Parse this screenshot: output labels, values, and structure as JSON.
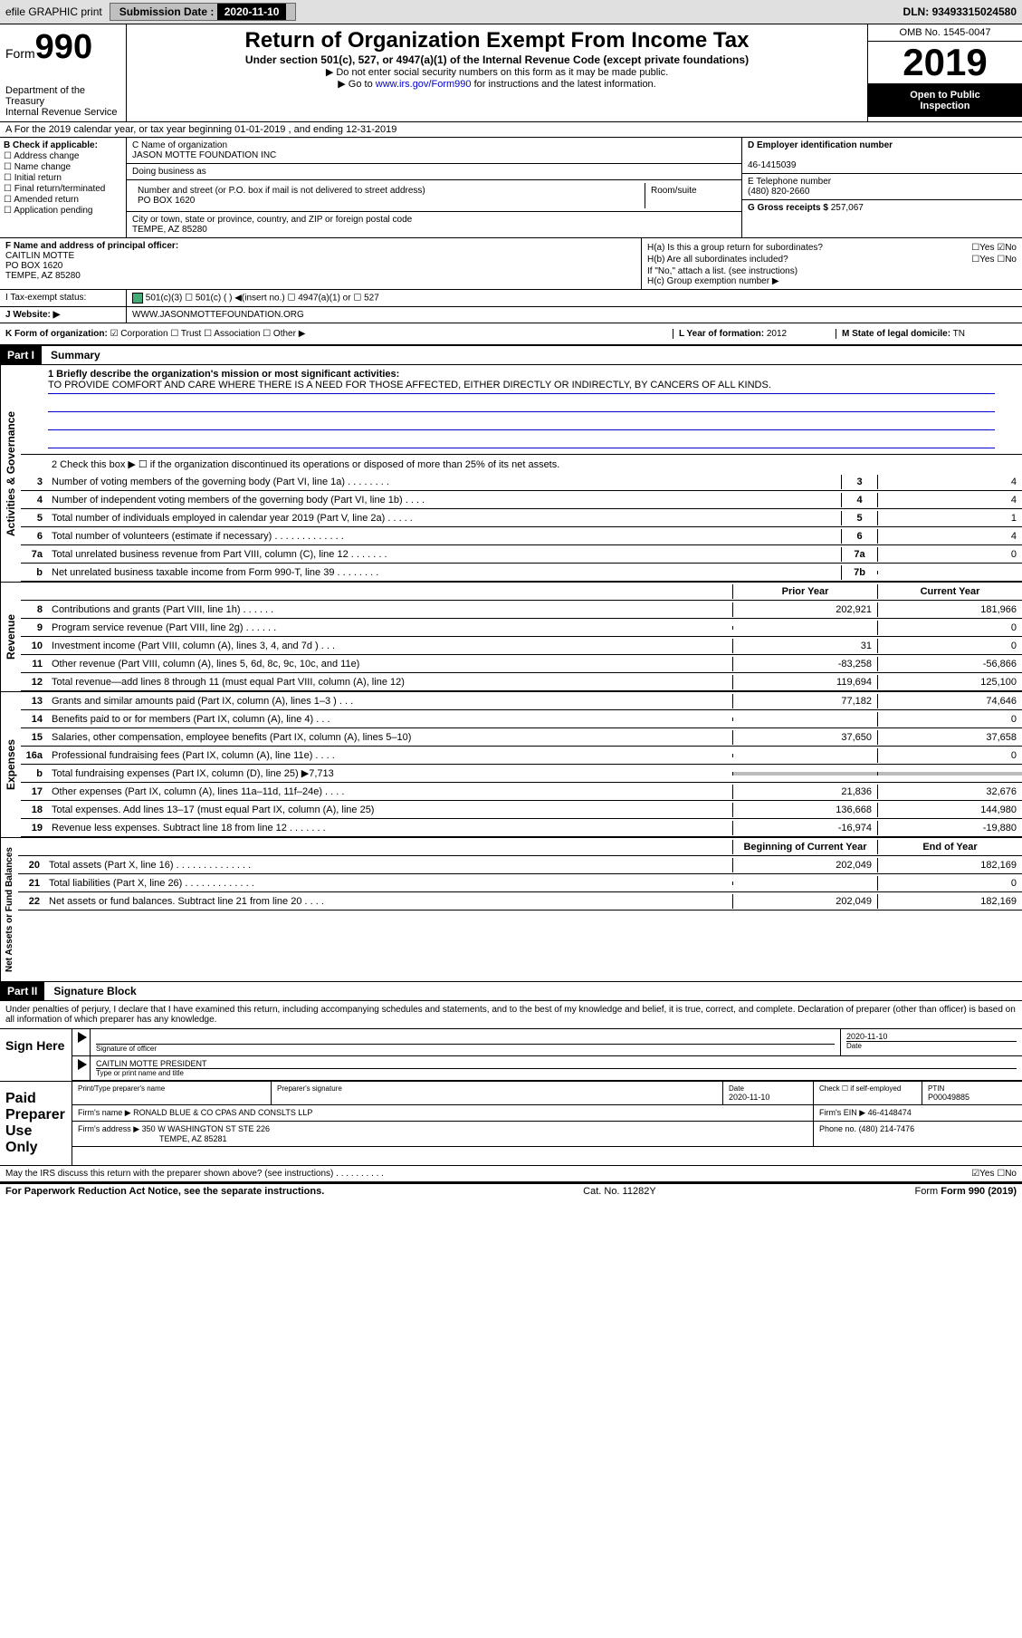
{
  "topbar": {
    "efile": "efile GRAPHIC print",
    "submission_label": "Submission Date :",
    "submission_date": "2020-11-10",
    "dln_label": "DLN:",
    "dln": "93493315024580"
  },
  "header": {
    "form_small": "Form",
    "form_num": "990",
    "dept1": "Department of the Treasury",
    "dept2": "Internal Revenue Service",
    "title": "Return of Organization Exempt From Income Tax",
    "subtitle": "Under section 501(c), 527, or 4947(a)(1) of the Internal Revenue Code (except private foundations)",
    "note1": "▶ Do not enter social security numbers on this form as it may be made public.",
    "note2_pre": "▶ Go to ",
    "note2_link": "www.irs.gov/Form990",
    "note2_post": " for instructions and the latest information.",
    "omb": "OMB No. 1545-0047",
    "year": "2019",
    "open1": "Open to Public",
    "open2": "Inspection"
  },
  "row_a": "A For the 2019 calendar year, or tax year beginning 01-01-2019  , and ending 12-31-2019",
  "col_b": {
    "label": "B Check if applicable:",
    "opts": [
      "☐ Address change",
      "☐ Name change",
      "☐ Initial return",
      "☐ Final return/terminated",
      "☐ Amended return",
      "☐ Application pending"
    ]
  },
  "col_c": {
    "name_lbl": "C Name of organization",
    "name": "JASON MOTTE FOUNDATION INC",
    "dba_lbl": "Doing business as",
    "dba": "",
    "addr_lbl": "Number and street (or P.O. box if mail is not delivered to street address)",
    "room_lbl": "Room/suite",
    "addr": "PO BOX 1620",
    "city_lbl": "City or town, state or province, country, and ZIP or foreign postal code",
    "city": "TEMPE, AZ  85280"
  },
  "col_de": {
    "ein_lbl": "D Employer identification number",
    "ein": "46-1415039",
    "tel_lbl": "E Telephone number",
    "tel": "(480) 820-2660",
    "gross_lbl": "G Gross receipts $",
    "gross": "257,067"
  },
  "col_f": {
    "lbl": "F Name and address of principal officer:",
    "name": "CAITLIN MOTTE",
    "addr1": "PO BOX 1620",
    "addr2": "TEMPE, AZ  85280"
  },
  "col_h": {
    "ha": "H(a)  Is this a group return for subordinates?",
    "ha_ans": "☐Yes ☑No",
    "hb": "H(b)  Are all subordinates included?",
    "hb_ans": "☐Yes  ☐No",
    "hb_note": "If \"No,\" attach a list. (see instructions)",
    "hc": "H(c)  Group exemption number ▶"
  },
  "row_i": {
    "lbl": "I  Tax-exempt status:",
    "opts": "501(c)(3)    ☐ 501(c) (  ) ◀(insert no.)    ☐ 4947(a)(1) or  ☐ 527"
  },
  "row_j": {
    "lbl": "J  Website: ▶",
    "val": "WWW.JASONMOTTEFOUNDATION.ORG"
  },
  "row_k": {
    "lbl": "K Form of organization:",
    "opts": "☑ Corporation  ☐ Trust  ☐ Association  ☐ Other ▶",
    "l_lbl": "L Year of formation:",
    "l_val": "2012",
    "m_lbl": "M State of legal domicile:",
    "m_val": "TN"
  },
  "parts": {
    "p1": "Part I",
    "p1_title": "Summary",
    "p2": "Part II",
    "p2_title": "Signature Block"
  },
  "sidelabels": {
    "gov": "Activities & Governance",
    "rev": "Revenue",
    "exp": "Expenses",
    "net": "Net Assets or Fund Balances"
  },
  "summary": {
    "line1": "1  Briefly describe the organization's mission or most significant activities:",
    "mission": "TO PROVIDE COMFORT AND CARE WHERE THERE IS A NEED FOR THOSE AFFECTED, EITHER DIRECTLY OR INDIRECTLY, BY CANCERS OF ALL KINDS.",
    "line2": "2  Check this box ▶ ☐ if the organization discontinued its operations or disposed of more than 25% of its net assets.",
    "gov_lines": [
      {
        "n": "3",
        "desc": "Number of voting members of the governing body (Part VI, line 1a)  .  .  .  .  .  .  .  .",
        "box": "3",
        "val": "4"
      },
      {
        "n": "4",
        "desc": "Number of independent voting members of the governing body (Part VI, line 1b)  .  .  .  .",
        "box": "4",
        "val": "4"
      },
      {
        "n": "5",
        "desc": "Total number of individuals employed in calendar year 2019 (Part V, line 2a)  .  .  .  .  .",
        "box": "5",
        "val": "1"
      },
      {
        "n": "6",
        "desc": "Total number of volunteers (estimate if necessary)  .  .  .  .  .  .  .  .  .  .  .  .  .",
        "box": "6",
        "val": "4"
      },
      {
        "n": "7a",
        "desc": "Total unrelated business revenue from Part VIII, column (C), line 12  .  .  .  .  .  .  .",
        "box": "7a",
        "val": "0"
      },
      {
        "n": "b",
        "desc": "Net unrelated business taxable income from Form 990-T, line 39  .  .  .  .  .  .  .  .",
        "box": "7b",
        "val": ""
      }
    ],
    "hdr_prior": "Prior Year",
    "hdr_current": "Current Year",
    "rev_lines": [
      {
        "n": "8",
        "desc": "Contributions and grants (Part VIII, line 1h)  .  .  .  .  .  .",
        "py": "202,921",
        "cy": "181,966"
      },
      {
        "n": "9",
        "desc": "Program service revenue (Part VIII, line 2g)  .  .  .  .  .  .",
        "py": "",
        "cy": "0"
      },
      {
        "n": "10",
        "desc": "Investment income (Part VIII, column (A), lines 3, 4, and 7d )  .  .  .",
        "py": "31",
        "cy": "0"
      },
      {
        "n": "11",
        "desc": "Other revenue (Part VIII, column (A), lines 5, 6d, 8c, 9c, 10c, and 11e)",
        "py": "-83,258",
        "cy": "-56,866"
      },
      {
        "n": "12",
        "desc": "Total revenue—add lines 8 through 11 (must equal Part VIII, column (A), line 12)",
        "py": "119,694",
        "cy": "125,100"
      }
    ],
    "exp_lines": [
      {
        "n": "13",
        "desc": "Grants and similar amounts paid (Part IX, column (A), lines 1–3 )  .  .  .",
        "py": "77,182",
        "cy": "74,646"
      },
      {
        "n": "14",
        "desc": "Benefits paid to or for members (Part IX, column (A), line 4)  .  .  .",
        "py": "",
        "cy": "0"
      },
      {
        "n": "15",
        "desc": "Salaries, other compensation, employee benefits (Part IX, column (A), lines 5–10)",
        "py": "37,650",
        "cy": "37,658"
      },
      {
        "n": "16a",
        "desc": "Professional fundraising fees (Part IX, column (A), line 11e)  .  .  .  .",
        "py": "",
        "cy": "0"
      },
      {
        "n": "b",
        "desc": "Total fundraising expenses (Part IX, column (D), line 25) ▶7,713",
        "py": "grey",
        "cy": "grey"
      },
      {
        "n": "17",
        "desc": "Other expenses (Part IX, column (A), lines 11a–11d, 11f–24e)  .  .  .  .",
        "py": "21,836",
        "cy": "32,676"
      },
      {
        "n": "18",
        "desc": "Total expenses. Add lines 13–17 (must equal Part IX, column (A), line 25)",
        "py": "136,668",
        "cy": "144,980"
      },
      {
        "n": "19",
        "desc": "Revenue less expenses. Subtract line 18 from line 12  .  .  .  .  .  .  .",
        "py": "-16,974",
        "cy": "-19,880"
      }
    ],
    "hdr_begin": "Beginning of Current Year",
    "hdr_end": "End of Year",
    "net_lines": [
      {
        "n": "20",
        "desc": "Total assets (Part X, line 16)  .  .  .  .  .  .  .  .  .  .  .  .  .  .",
        "py": "202,049",
        "cy": "182,169"
      },
      {
        "n": "21",
        "desc": "Total liabilities (Part X, line 26)  .  .  .  .  .  .  .  .  .  .  .  .  .",
        "py": "",
        "cy": "0"
      },
      {
        "n": "22",
        "desc": "Net assets or fund balances. Subtract line 21 from line 20  .  .  .  .",
        "py": "202,049",
        "cy": "182,169"
      }
    ]
  },
  "signature": {
    "decl": "Under penalties of perjury, I declare that I have examined this return, including accompanying schedules and statements, and to the best of my knowledge and belief, it is true, correct, and complete. Declaration of preparer (other than officer) is based on all information of which preparer has any knowledge.",
    "sign_here": "Sign Here",
    "sig_officer_lbl": "Signature of officer",
    "date_lbl": "Date",
    "date_val": "2020-11-10",
    "officer_name": "CAITLIN MOTTE PRESIDENT",
    "officer_name_lbl": "Type or print name and title",
    "paid": "Paid Preparer Use Only",
    "prep_name_lbl": "Print/Type preparer's name",
    "prep_sig_lbl": "Preparer's signature",
    "prep_date_lbl": "Date",
    "prep_date": "2020-11-10",
    "prep_check_lbl": "Check ☐ if self-employed",
    "ptin_lbl": "PTIN",
    "ptin": "P00049885",
    "firm_name_lbl": "Firm's name    ▶",
    "firm_name": "RONALD BLUE & CO CPAS AND CONSLTS LLP",
    "firm_ein_lbl": "Firm's EIN ▶",
    "firm_ein": "46-4148474",
    "firm_addr_lbl": "Firm's address ▶",
    "firm_addr1": "350 W WASHINGTON ST STE 226",
    "firm_addr2": "TEMPE, AZ  85281",
    "phone_lbl": "Phone no.",
    "phone": "(480) 214-7476",
    "discuss": "May the IRS discuss this return with the preparer shown above? (see instructions)  .  .  .  .  .  .  .  .  .  .",
    "discuss_ans": "☑Yes  ☐No"
  },
  "footer": {
    "left": "For Paperwork Reduction Act Notice, see the separate instructions.",
    "mid": "Cat. No. 11282Y",
    "right": "Form 990 (2019)"
  }
}
